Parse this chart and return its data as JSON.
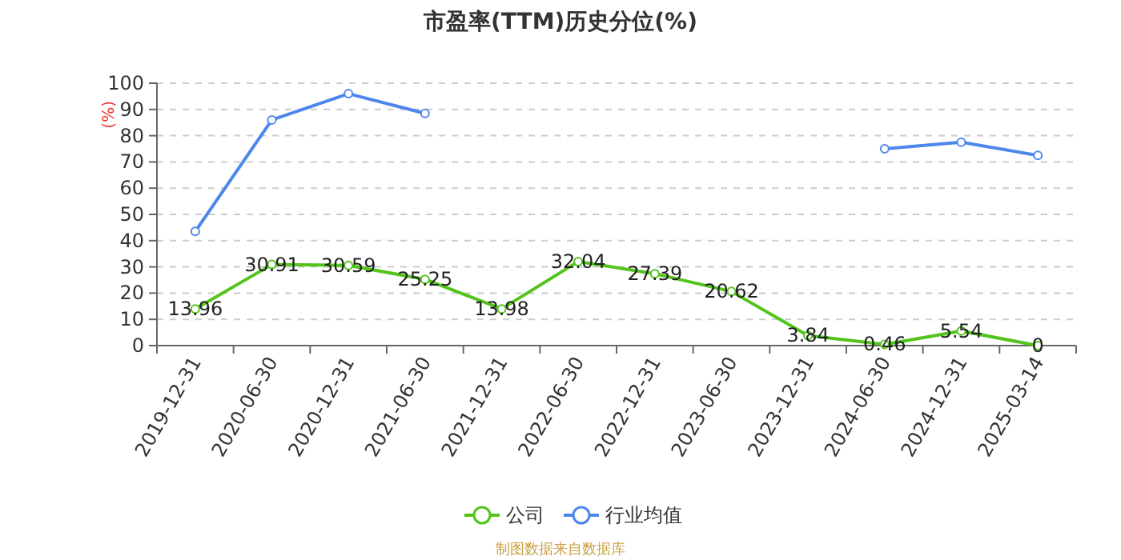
{
  "chart_data": {
    "type": "line",
    "title": "市盈率(TTM)历史分位(%)",
    "ylabel": "(%)",
    "categories": [
      "2019-12-31",
      "2020-06-30",
      "2020-12-31",
      "2021-06-30",
      "2021-12-31",
      "2022-06-30",
      "2022-12-31",
      "2023-06-30",
      "2023-12-31",
      "2024-06-30",
      "2024-12-31",
      "2025-03-14"
    ],
    "series": [
      {
        "name": "公司",
        "color": "#52c41a",
        "values": [
          13.96,
          30.91,
          30.59,
          25.25,
          13.98,
          32.04,
          27.39,
          20.62,
          3.84,
          0.46,
          5.54,
          0
        ],
        "value_labels": [
          "13.96",
          "30.91",
          "30.59",
          "25.25",
          "13.98",
          "32.04",
          "27.39",
          "20.62",
          "3.84",
          "0.46",
          "5.54",
          "0"
        ]
      },
      {
        "name": "行业均值",
        "color": "#4e87ec",
        "values": [
          43.5,
          86,
          96,
          88.5,
          null,
          null,
          null,
          null,
          null,
          75,
          77.5,
          72.5
        ]
      }
    ],
    "ylim": [
      0,
      100
    ],
    "yticks": [
      0,
      10,
      20,
      30,
      40,
      50,
      60,
      70,
      80,
      90,
      100
    ],
    "grid": "y",
    "legend": "bottom",
    "marker": "circle",
    "annotations": [
      "制图数据来自数据库"
    ]
  }
}
